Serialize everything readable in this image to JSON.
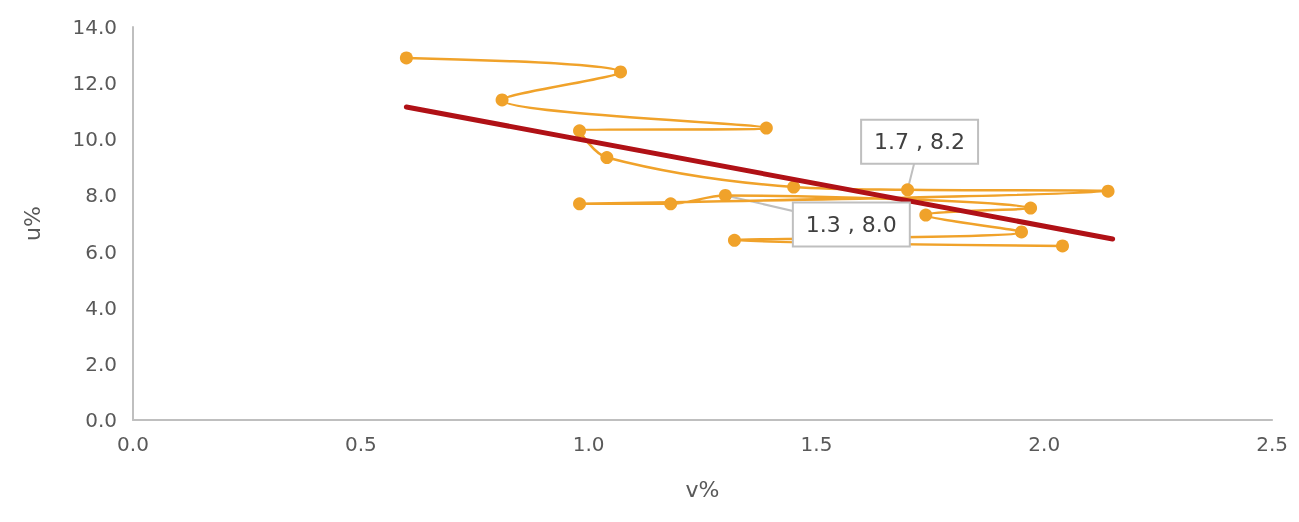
{
  "chart_data": {
    "type": "line",
    "xlabel": "v%",
    "ylabel": "u%",
    "xlim": [
      0,
      2.5
    ],
    "xticks": [
      {
        "value": 0,
        "label": "0.0"
      },
      {
        "value": 0.5,
        "label": "0.5"
      },
      {
        "value": 1,
        "label": "1.0"
      },
      {
        "value": 1.5,
        "label": "1.5"
      },
      {
        "value": 2,
        "label": "2.0"
      },
      {
        "value": 2.5,
        "label": "2.5"
      }
    ],
    "ylim": [
      0,
      14
    ],
    "yticks": [
      {
        "value": 0,
        "label": "0.0"
      },
      {
        "value": 2,
        "label": "2.0"
      },
      {
        "value": 4,
        "label": "4.0"
      },
      {
        "value": 6,
        "label": "6.0"
      },
      {
        "value": 8,
        "label": "8.0"
      },
      {
        "value": 10,
        "label": "10.0"
      },
      {
        "value": 12,
        "label": "12.0"
      },
      {
        "value": 14,
        "label": "14.0"
      }
    ],
    "grid": false,
    "series": [
      {
        "color": "#f0a22a",
        "marker": "circle",
        "x": [
          0.6,
          1.07,
          0.81,
          1.39,
          0.98,
          1.04,
          1.45,
          1.7,
          2.14,
          0.98,
          1.18,
          1.3,
          1.97,
          1.74,
          1.95,
          1.32,
          2.04
        ],
        "values": [
          12.9,
          12.4,
          11.4,
          10.4,
          10.3,
          9.35,
          8.3,
          8.2,
          8.15,
          7.7,
          7.7,
          8.0,
          7.55,
          7.3,
          6.7,
          6.4,
          6.2
        ]
      },
      {
        "color": "#b01116",
        "marker": "none",
        "x": [
          0.6,
          2.15
        ],
        "values": [
          11.15,
          6.45
        ]
      }
    ],
    "annotations": [
      {
        "text": "1.7 , 8.2",
        "x": 1.7,
        "y": 8.2
      },
      {
        "text": "1.3 , 8.0",
        "x": 1.3,
        "y": 8.0
      }
    ]
  }
}
